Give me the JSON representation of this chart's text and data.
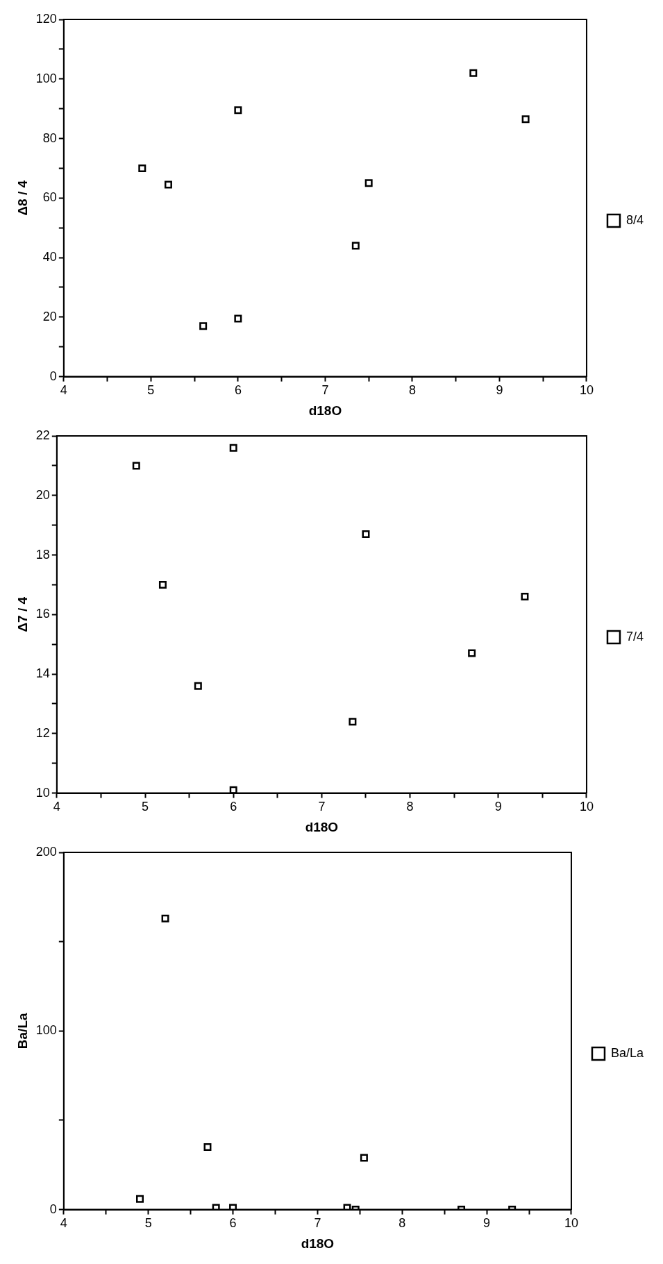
{
  "chart_data": [
    {
      "type": "scatter",
      "xlabel": "d18O",
      "ylabel": "Δ8 / 4",
      "marker": "square",
      "legend": "right",
      "grid": false,
      "xlim": [
        4,
        10
      ],
      "xticks": [
        4,
        {
          "value": 4.5,
          "label": null
        },
        5,
        {
          "value": 5.5,
          "label": null
        },
        6,
        {
          "value": 6.5,
          "label": null
        },
        7,
        {
          "value": 7.5,
          "label": null
        },
        8,
        {
          "value": 8.5,
          "label": null
        },
        9,
        {
          "value": 9.5,
          "label": null
        },
        10
      ],
      "ylim": [
        0,
        120
      ],
      "yticks": [
        0,
        {
          "value": 10,
          "label": null
        },
        20,
        {
          "value": 30,
          "label": null
        },
        40,
        {
          "value": 50,
          "label": null
        },
        60,
        {
          "value": 70,
          "label": null
        },
        80,
        {
          "value": 90,
          "label": null
        },
        100,
        {
          "value": 110,
          "label": null
        },
        120
      ],
      "x": [
        4.9,
        5.2,
        5.6,
        6.0,
        6.0,
        7.35,
        7.5,
        8.7,
        9.3
      ],
      "series": [
        {
          "name": "8/4",
          "color": "#000000",
          "values": [
            70,
            64.5,
            17,
            89.5,
            19.5,
            44,
            65,
            102,
            86.5
          ]
        }
      ]
    },
    {
      "type": "scatter",
      "xlabel": "d18O",
      "ylabel": "Δ7 / 4",
      "marker": "square",
      "legend": "right",
      "grid": false,
      "xlim": [
        4,
        10
      ],
      "xticks": [
        4,
        {
          "value": 4.5,
          "label": null
        },
        5,
        {
          "value": 5.5,
          "label": null
        },
        6,
        {
          "value": 6.5,
          "label": null
        },
        7,
        {
          "value": 7.5,
          "label": null
        },
        8,
        {
          "value": 8.5,
          "label": null
        },
        9,
        {
          "value": 9.5,
          "label": null
        },
        10
      ],
      "ylim": [
        10,
        22
      ],
      "yticks": [
        10,
        {
          "value": 11,
          "label": null
        },
        12,
        {
          "value": 13,
          "label": null
        },
        14,
        {
          "value": 15,
          "label": null
        },
        16,
        {
          "value": 17,
          "label": null
        },
        18,
        {
          "value": 19,
          "label": null
        },
        20,
        {
          "value": 21,
          "label": null
        },
        22
      ],
      "x": [
        4.9,
        5.2,
        5.6,
        6.0,
        6.0,
        7.35,
        7.5,
        8.7,
        9.3
      ],
      "series": [
        {
          "name": "7/4",
          "color": "#000000",
          "values": [
            21.0,
            17.0,
            13.6,
            21.6,
            10.1,
            12.4,
            18.7,
            14.7,
            16.6
          ]
        }
      ]
    },
    {
      "type": "scatter",
      "xlabel": "d18O",
      "ylabel": "Ba/La",
      "marker": "square",
      "legend": "right",
      "grid": false,
      "xlim": [
        4,
        10
      ],
      "xticks": [
        4,
        {
          "value": 4.5,
          "label": null
        },
        5,
        {
          "value": 5.5,
          "label": null
        },
        6,
        {
          "value": 6.5,
          "label": null
        },
        7,
        {
          "value": 7.5,
          "label": null
        },
        8,
        {
          "value": 8.5,
          "label": null
        },
        9,
        {
          "value": 9.5,
          "label": null
        },
        10
      ],
      "ylim": [
        0,
        200
      ],
      "yticks": [
        0,
        {
          "value": 50,
          "label": null
        },
        100,
        {
          "value": 150,
          "label": null
        },
        200
      ],
      "x": [
        4.9,
        5.2,
        5.7,
        5.8,
        6.0,
        7.35,
        7.45,
        7.55,
        8.7,
        9.3
      ],
      "series": [
        {
          "name": "Ba/La",
          "color": "#000000",
          "values": [
            6,
            163,
            35,
            1,
            1,
            1,
            0,
            29,
            0,
            0
          ]
        }
      ]
    }
  ]
}
